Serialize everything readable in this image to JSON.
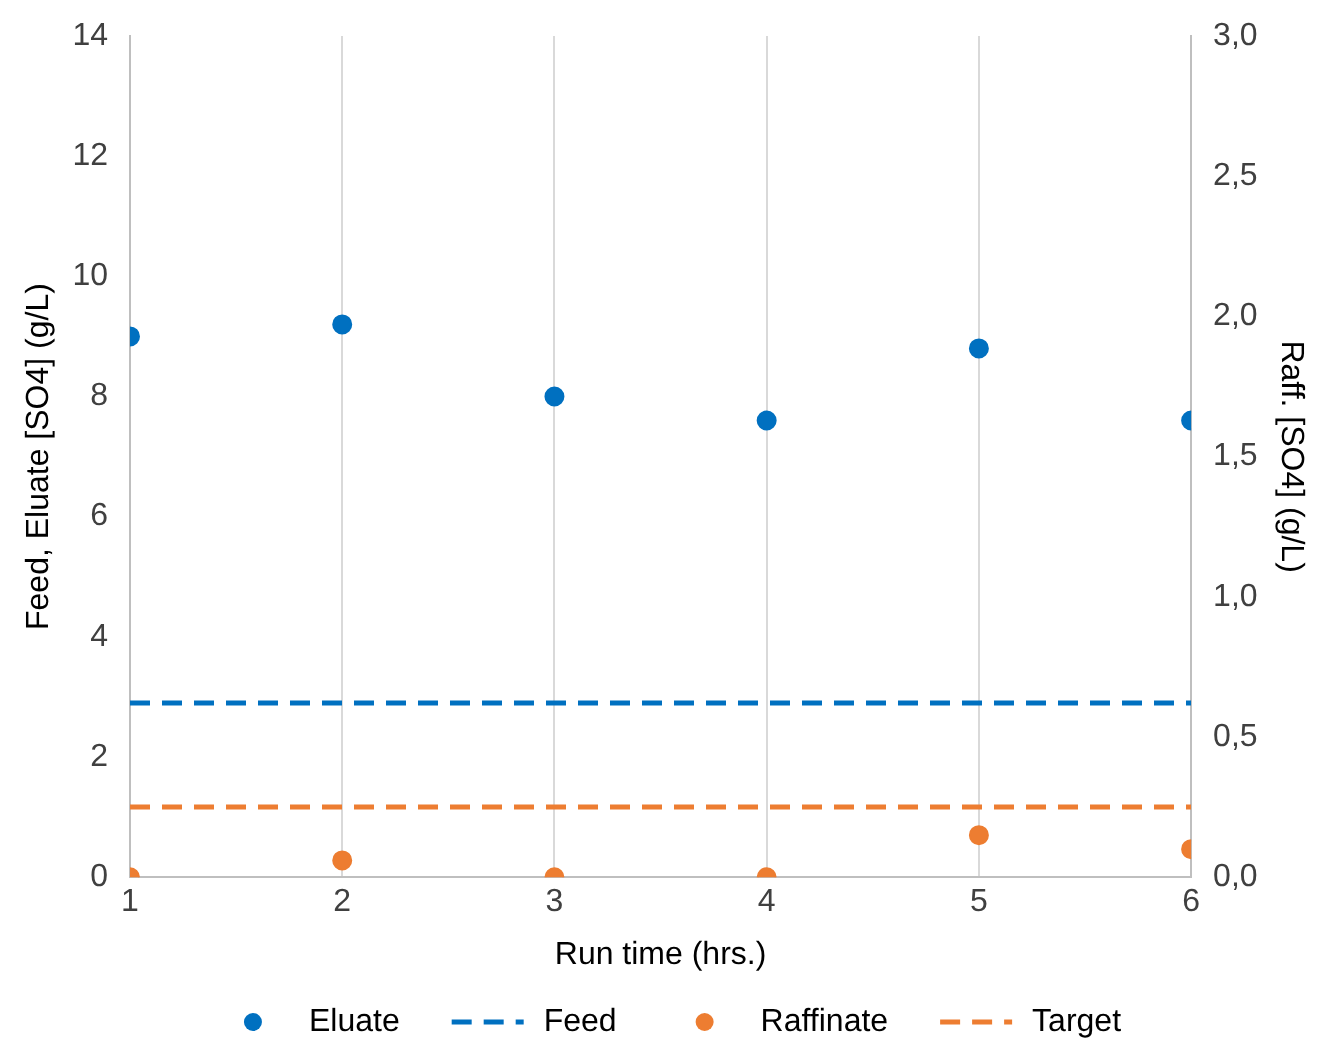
{
  "chart_data": {
    "type": "scatter",
    "xlabel": "Run time (hrs.)",
    "ylabel": "Feed, Eluate [SO4] (g/L)",
    "y2label": "Raff. [SO4] (g/L)",
    "x": [
      1,
      2,
      3,
      4,
      5,
      6
    ],
    "series": [
      {
        "name": "Eluate",
        "color": "#0070c0",
        "values": [
          9.0,
          9.2,
          8.0,
          7.6,
          8.8,
          7.6
        ]
      },
      {
        "name": "Feed",
        "type": "line",
        "line_style": "dashed",
        "marker": "none",
        "color": "#0070c0",
        "values": [
          2.9,
          2.9,
          2.9,
          2.9,
          2.9,
          2.9
        ]
      },
      {
        "name": "Raffinate",
        "color": "#ed7d31",
        "axis": "y2",
        "values": [
          0,
          0.06,
          0,
          0,
          0.15,
          0.1
        ]
      },
      {
        "name": "Target",
        "type": "line",
        "line_style": "dashed",
        "marker": "none",
        "color": "#ed7d31",
        "axis": "y2",
        "values": [
          0.25,
          0.25,
          0.25,
          0.25,
          0.25,
          0.25
        ]
      }
    ],
    "xlim": [
      1,
      6
    ],
    "xticks": [
      1,
      2,
      3,
      4,
      5,
      6
    ],
    "ylim": [
      0,
      14
    ],
    "yticks": [
      0,
      2,
      4,
      6,
      8,
      10,
      12,
      14
    ],
    "y2lim": [
      0,
      3
    ],
    "y2ticks": [
      {
        "value": 0,
        "label": "0,0"
      },
      {
        "value": 0.5,
        "label": "0,5"
      },
      {
        "value": 1,
        "label": "1,0"
      },
      {
        "value": 1.5,
        "label": "1,5"
      },
      {
        "value": 2,
        "label": "2,0"
      },
      {
        "value": 2.5,
        "label": "2,5"
      },
      {
        "value": 3,
        "label": "3,0"
      }
    ],
    "grid": "x",
    "legend": "bottom",
    "marker": "circle"
  }
}
